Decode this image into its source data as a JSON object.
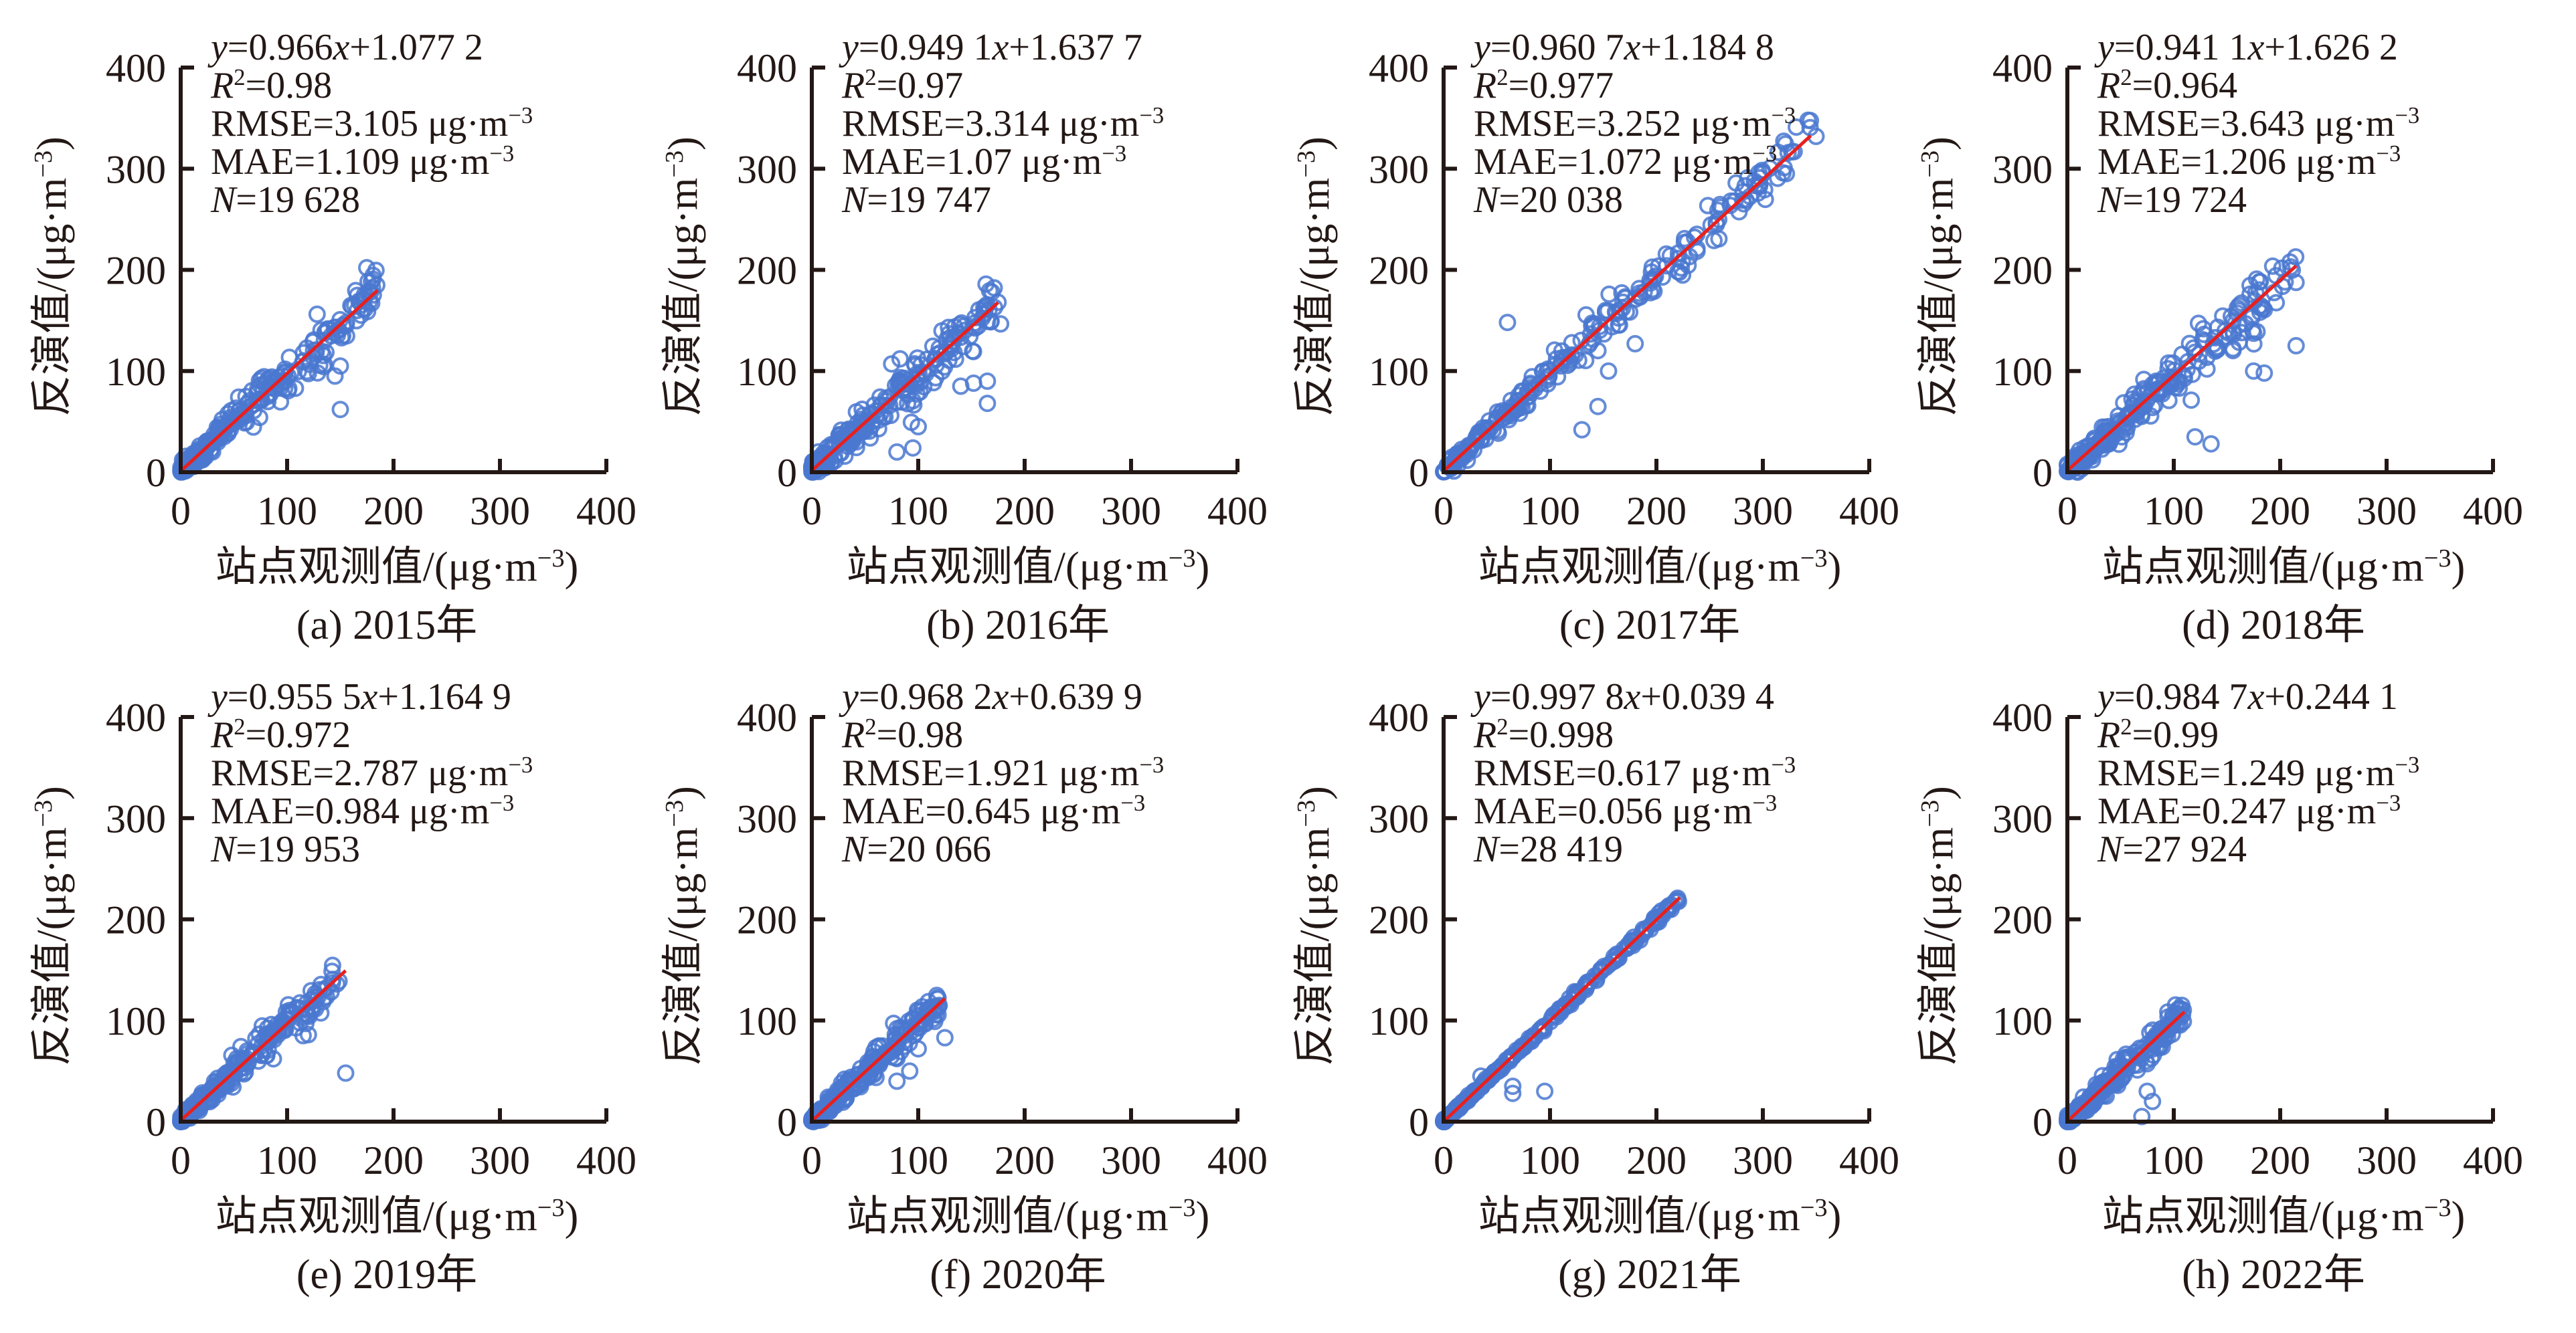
{
  "figure": {
    "colors": {
      "points": "#4a78d0",
      "fit_line": "#e8201e",
      "axes": "#231815"
    }
  },
  "chart_data": [
    {
      "type": "scatter",
      "id": "a",
      "caption": "(a) 2015年",
      "xlabel": "站点观测值/(μg·m⁻³)",
      "ylabel": "反演值/(μg·m⁻³)",
      "xlim": [
        0,
        400
      ],
      "ylim": [
        0,
        400
      ],
      "xticks": [
        "0",
        "100",
        "200",
        "300",
        "400"
      ],
      "yticks": [
        "0",
        "100",
        "200",
        "300",
        "400"
      ],
      "grid": false,
      "fit": {
        "slope": 0.966,
        "intercept": 1.0772,
        "x_range": [
          0,
          185
        ]
      },
      "annotations": [
        "y=0.966x+1.077 2",
        "R²=0.98",
        "RMSE=3.105 μg·m⁻³",
        "MAE=1.109 μg·m⁻³",
        "N=19 628"
      ],
      "points_summary": {
        "x_max": 185,
        "spread": 16,
        "outliers": [
          [
            150,
            62
          ],
          [
            145,
            95
          ],
          [
            150,
            105
          ]
        ]
      }
    },
    {
      "type": "scatter",
      "id": "b",
      "caption": "(b) 2016年",
      "xlabel": "站点观测值/(μg·m⁻³)",
      "ylabel": "反演值/(μg·m⁻³)",
      "xlim": [
        0,
        400
      ],
      "ylim": [
        0,
        400
      ],
      "xticks": [
        "0",
        "100",
        "200",
        "300",
        "400"
      ],
      "yticks": [
        "0",
        "100",
        "200",
        "300",
        "400"
      ],
      "grid": false,
      "fit": {
        "slope": 0.9491,
        "intercept": 1.6377,
        "x_range": [
          0,
          175
        ]
      },
      "annotations": [
        "y=0.949 1x+1.637 7",
        "R²=0.97",
        "RMSE=3.314 μg·m⁻³",
        "MAE=1.07 μg·m⁻³",
        "N=19 747"
      ],
      "points_summary": {
        "x_max": 178,
        "spread": 18,
        "outliers": [
          [
            140,
            85
          ],
          [
            152,
            88
          ],
          [
            165,
            90
          ],
          [
            165,
            68
          ],
          [
            100,
            45
          ],
          [
            80,
            20
          ],
          [
            95,
            24
          ]
        ]
      }
    },
    {
      "type": "scatter",
      "id": "c",
      "caption": "(c) 2017年",
      "xlabel": "站点观测值/(μg·m⁻³)",
      "ylabel": "反演值/(μg·m⁻³)",
      "xlim": [
        0,
        400
      ],
      "ylim": [
        0,
        400
      ],
      "xticks": [
        "0",
        "100",
        "200",
        "300",
        "400"
      ],
      "yticks": [
        "0",
        "100",
        "200",
        "300",
        "400"
      ],
      "grid": false,
      "fit": {
        "slope": 0.9607,
        "intercept": 1.1848,
        "x_range": [
          0,
          345
        ]
      },
      "annotations": [
        "y=0.960 7x+1.184 8",
        "R²=0.977",
        "RMSE=3.252 μg·m⁻³",
        "MAE=1.072 μg·m⁻³",
        "N=20 038"
      ],
      "points_summary": {
        "x_max": 350,
        "spread": 16,
        "outliers": [
          [
            60,
            148
          ],
          [
            180,
            127
          ],
          [
            155,
            100
          ],
          [
            145,
            65
          ],
          [
            130,
            42
          ],
          [
            350,
            332
          ],
          [
            260,
            262
          ],
          [
            270,
            268
          ]
        ]
      }
    },
    {
      "type": "scatter",
      "id": "d",
      "caption": "(d) 2018年",
      "xlabel": "站点观测值/(μg·m⁻³)",
      "ylabel": "反演值/(μg·m⁻³)",
      "xlim": [
        0,
        400
      ],
      "ylim": [
        0,
        400
      ],
      "xticks": [
        "0",
        "100",
        "200",
        "300",
        "400"
      ],
      "yticks": [
        "0",
        "100",
        "200",
        "300",
        "400"
      ],
      "grid": false,
      "fit": {
        "slope": 0.9411,
        "intercept": 1.6262,
        "x_range": [
          0,
          215
        ]
      },
      "annotations": [
        "y=0.941 1x+1.626 2",
        "R²=0.964",
        "RMSE=3.643 μg·m⁻³",
        "MAE=1.206 μg·m⁻³",
        "N=19 724"
      ],
      "points_summary": {
        "x_max": 215,
        "spread": 18,
        "outliers": [
          [
            215,
            125
          ],
          [
            185,
            98
          ],
          [
            175,
            100
          ],
          [
            120,
            35
          ],
          [
            135,
            28
          ]
        ]
      }
    },
    {
      "type": "scatter",
      "id": "e",
      "caption": "(e) 2019年",
      "xlabel": "站点观测值/(μg·m⁻³)",
      "ylabel": "反演值/(μg·m⁻³)",
      "xlim": [
        0,
        400
      ],
      "ylim": [
        0,
        400
      ],
      "xticks": [
        "0",
        "100",
        "200",
        "300",
        "400"
      ],
      "yticks": [
        "0",
        "100",
        "200",
        "300",
        "400"
      ],
      "grid": false,
      "fit": {
        "slope": 0.9555,
        "intercept": 1.1649,
        "x_range": [
          0,
          155
        ]
      },
      "annotations": [
        "y=0.955 5x+1.164 9",
        "R²=0.972",
        "RMSE=2.787 μg·m⁻³",
        "MAE=0.984 μg·m⁻³",
        "N=19 953"
      ],
      "points_summary": {
        "x_max": 150,
        "spread": 12,
        "outliers": [
          [
            155,
            48
          ],
          [
            115,
            85
          ],
          [
            120,
            86
          ]
        ]
      }
    },
    {
      "type": "scatter",
      "id": "f",
      "caption": "(f) 2020年",
      "xlabel": "站点观测值/(μg·m⁻³)",
      "ylabel": "反演值/(μg·m⁻³)",
      "xlim": [
        0,
        400
      ],
      "ylim": [
        0,
        400
      ],
      "xticks": [
        "0",
        "100",
        "200",
        "300",
        "400"
      ],
      "yticks": [
        "0",
        "100",
        "200",
        "300",
        "400"
      ],
      "grid": false,
      "fit": {
        "slope": 0.9682,
        "intercept": 0.6399,
        "x_range": [
          0,
          125
        ]
      },
      "annotations": [
        "y=0.968 2x+0.639 9",
        "R²=0.98",
        "RMSE=1.921 μg·m⁻³",
        "MAE=0.645 μg·m⁻³",
        "N=20 066"
      ],
      "points_summary": {
        "x_max": 120,
        "spread": 10,
        "outliers": [
          [
            125,
            83
          ],
          [
            100,
            72
          ],
          [
            80,
            40
          ],
          [
            92,
            50
          ]
        ]
      }
    },
    {
      "type": "scatter",
      "id": "g",
      "caption": "(g) 2021年",
      "xlabel": "站点观测值/(μg·m⁻³)",
      "ylabel": "反演值/(μg·m⁻³)",
      "xlim": [
        0,
        400
      ],
      "ylim": [
        0,
        400
      ],
      "xticks": [
        "0",
        "100",
        "200",
        "300",
        "400"
      ],
      "yticks": [
        "0",
        "100",
        "200",
        "300",
        "400"
      ],
      "grid": false,
      "fit": {
        "slope": 0.9978,
        "intercept": 0.0394,
        "x_range": [
          0,
          222
        ]
      },
      "annotations": [
        "y=0.997 8x+0.039 4",
        "R²=0.998",
        "RMSE=0.617 μg·m⁻³",
        "MAE=0.056 μg·m⁻³",
        "N=28 419"
      ],
      "points_summary": {
        "x_max": 222,
        "spread": 3,
        "outliers": [
          [
            95,
            30
          ],
          [
            65,
            35
          ],
          [
            65,
            28
          ],
          [
            35,
            45
          ]
        ]
      }
    },
    {
      "type": "scatter",
      "id": "h",
      "caption": "(h) 2022年",
      "xlabel": "站点观测值/(μg·m⁻³)",
      "ylabel": "反演值/(μg·m⁻³)",
      "xlim": [
        0,
        400
      ],
      "ylim": [
        0,
        400
      ],
      "xticks": [
        "0",
        "100",
        "200",
        "300",
        "400"
      ],
      "yticks": [
        "0",
        "100",
        "200",
        "300",
        "400"
      ],
      "grid": false,
      "fit": {
        "slope": 0.9847,
        "intercept": 0.2441,
        "x_range": [
          0,
          110
        ]
      },
      "annotations": [
        "y=0.984 7x+0.244 1",
        "R²=0.99",
        "RMSE=1.249 μg·m⁻³",
        "MAE=0.247 μg·m⁻³",
        "N=27 924"
      ],
      "points_summary": {
        "x_max": 110,
        "spread": 10,
        "outliers": [
          [
            70,
            5
          ],
          [
            80,
            20
          ],
          [
            75,
            30
          ]
        ]
      }
    }
  ]
}
